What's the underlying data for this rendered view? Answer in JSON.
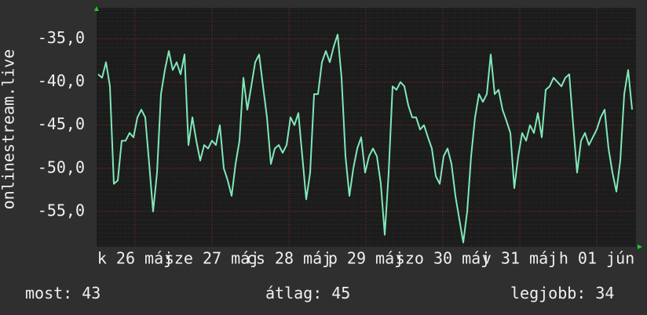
{
  "chart_data": {
    "type": "line",
    "y_label": "onlinestream.live",
    "color": "#7fe8b8",
    "grid": true,
    "ylim": [
      -59.1,
      -31.4
    ],
    "yticks": [
      {
        "value": -35,
        "label": "-35,0"
      },
      {
        "value": -40,
        "label": "-40,0"
      },
      {
        "value": -45,
        "label": "-45,0"
      },
      {
        "value": -50,
        "label": "-50,0"
      },
      {
        "value": -55,
        "label": "-55,0"
      }
    ],
    "xlim": [
      -0.4,
      137
    ],
    "xticks": [
      {
        "value": 9.4,
        "label": "k 26 máj"
      },
      {
        "value": 29,
        "label": "sze 27 máj"
      },
      {
        "value": 48.6,
        "label": "cs 28 máj"
      },
      {
        "value": 68.2,
        "label": "p 29 máj"
      },
      {
        "value": 87.8,
        "label": "szo 30 máj"
      },
      {
        "value": 107.4,
        "label": "v 31 máj"
      },
      {
        "value": 127,
        "label": "h 01 jún"
      }
    ],
    "x": [
      0,
      1,
      2,
      3,
      4,
      5,
      6,
      7,
      8,
      9,
      10,
      11,
      12,
      13,
      14,
      15,
      16,
      17,
      18,
      19,
      20,
      21,
      22,
      23,
      24,
      25,
      26,
      27,
      28,
      29,
      30,
      31,
      32,
      33,
      34,
      35,
      36,
      37,
      38,
      39,
      40,
      41,
      42,
      43,
      44,
      45,
      46,
      47,
      48,
      49,
      50,
      51,
      52,
      53,
      54,
      55,
      56,
      57,
      58,
      59,
      60,
      61,
      62,
      63,
      64,
      65,
      66,
      67,
      68,
      69,
      70,
      71,
      72,
      73,
      74,
      75,
      76,
      77,
      78,
      79,
      80,
      81,
      82,
      83,
      84,
      85,
      86,
      87,
      88,
      89,
      90,
      91,
      92,
      93,
      94,
      95,
      96,
      97,
      98,
      99,
      100,
      101,
      102,
      103,
      104,
      105,
      106,
      107,
      108,
      109,
      110,
      111,
      112,
      113,
      114,
      115,
      116,
      117,
      118,
      119,
      120,
      121,
      122,
      123,
      124,
      125,
      126,
      127,
      128,
      129,
      130,
      131,
      132,
      133,
      134,
      135,
      136
    ],
    "values": [
      -39.1,
      -39.5,
      -37.7,
      -40.5,
      -51.8,
      -51.4,
      -46.8,
      -46.8,
      -45.9,
      -46.4,
      -44.1,
      -43.2,
      -44.1,
      -49.5,
      -55,
      -50.5,
      -41.4,
      -38.6,
      -36.4,
      -38.6,
      -37.7,
      -39.1,
      -36.8,
      -47.3,
      -44.1,
      -46.8,
      -49.1,
      -47.3,
      -47.7,
      -46.8,
      -47.3,
      -45,
      -50,
      -51.4,
      -53.2,
      -49.5,
      -46.8,
      -39.5,
      -43.2,
      -40.5,
      -37.7,
      -36.8,
      -40.5,
      -44.1,
      -49.5,
      -47.7,
      -47.3,
      -48.2,
      -47.3,
      -44.1,
      -45,
      -43.6,
      -48.6,
      -53.6,
      -50.5,
      -41.4,
      -41.4,
      -37.7,
      -36.4,
      -37.7,
      -35.9,
      -34.5,
      -39.5,
      -48.6,
      -53.2,
      -50,
      -47.7,
      -46.4,
      -50.5,
      -48.6,
      -47.7,
      -48.6,
      -51.8,
      -57.7,
      -50.5,
      -40.5,
      -40.9,
      -40,
      -40.5,
      -42.7,
      -44.1,
      -44.1,
      -45.5,
      -45,
      -46.4,
      -47.7,
      -50.9,
      -51.8,
      -48.6,
      -47.7,
      -49.5,
      -53.2,
      -55.9,
      -58.6,
      -55,
      -48.6,
      -44.1,
      -41.4,
      -42.3,
      -41.4,
      -36.8,
      -41.4,
      -40.9,
      -43.2,
      -44.5,
      -45.9,
      -52.3,
      -48.6,
      -45.9,
      -46.8,
      -45,
      -45.9,
      -43.6,
      -46.4,
      -40.9,
      -40.5,
      -39.5,
      -40,
      -40.5,
      -39.5,
      -39.1,
      -45,
      -50.5,
      -46.8,
      -45.9,
      -47.3,
      -46.4,
      -45.5,
      -44.1,
      -43.2,
      -47.7,
      -50.5,
      -52.7,
      -49.1,
      -41.4,
      -38.6,
      -43.2
    ]
  },
  "stats": [
    {
      "label": "most:",
      "value": 43
    },
    {
      "label": "átlag:",
      "value": 45
    },
    {
      "label": "legjobb:",
      "value": 34
    }
  ]
}
